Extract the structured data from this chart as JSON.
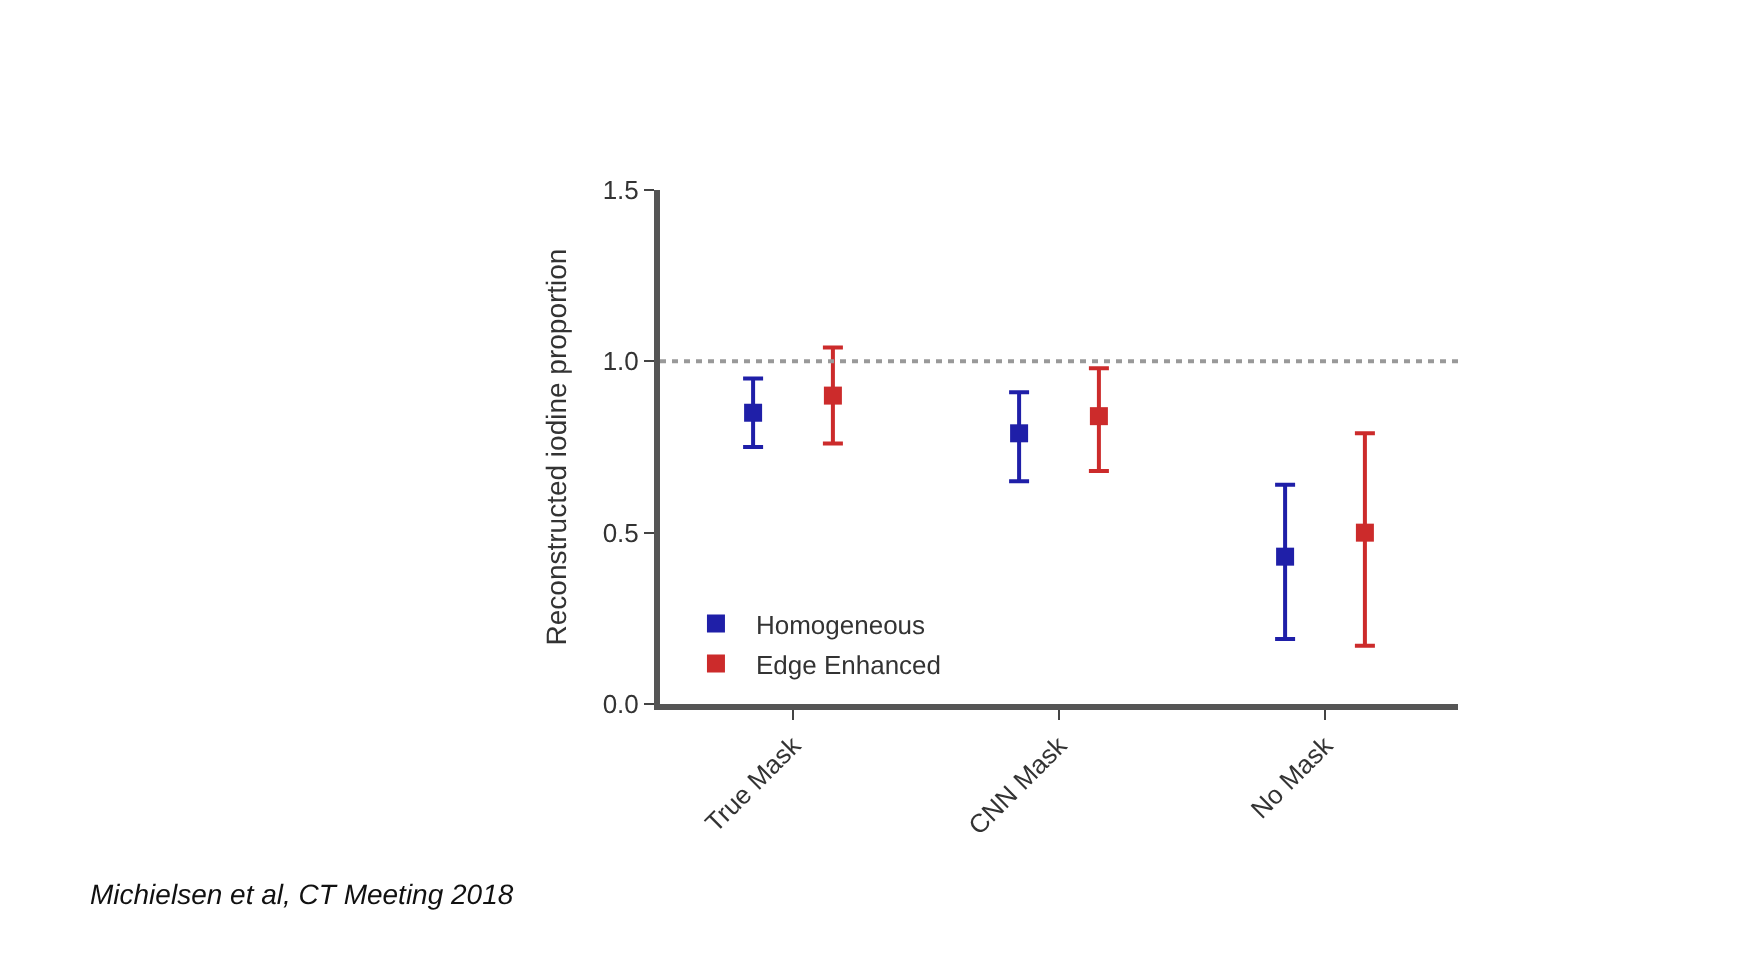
{
  "chart_data": {
    "type": "scatter",
    "ylabel": "Reconstructed iodine proportion",
    "categories": [
      "True Mask",
      "CNN Mask",
      "No Mask"
    ],
    "series": [
      {
        "name": "Homogeneous",
        "color": "#1f1fa8",
        "values": [
          0.85,
          0.79,
          0.43
        ],
        "errors": [
          [
            0.75,
            0.95
          ],
          [
            0.65,
            0.91
          ],
          [
            0.19,
            0.64
          ]
        ]
      },
      {
        "name": "Edge Enhanced",
        "color": "#cc2b2b",
        "values": [
          0.9,
          0.84,
          0.5
        ],
        "errors": [
          [
            0.76,
            1.04
          ],
          [
            0.68,
            0.98
          ],
          [
            0.17,
            0.79
          ]
        ]
      }
    ],
    "ylim": [
      0,
      1.5
    ],
    "yticks": [
      {
        "value": 0,
        "label": "0.0"
      },
      {
        "value": 0.5,
        "label": "0.5"
      },
      {
        "value": 1,
        "label": "1.0"
      },
      {
        "value": 1.5,
        "label": "1.5"
      }
    ],
    "ref_lines": [
      {
        "axis": "y",
        "value": 1,
        "label": null,
        "color": "#999999",
        "line_style": "dotted"
      }
    ],
    "marker": "square",
    "legend": "bottom left",
    "annotations": [
      "Michielsen et al, CT Meeting 2018"
    ]
  }
}
